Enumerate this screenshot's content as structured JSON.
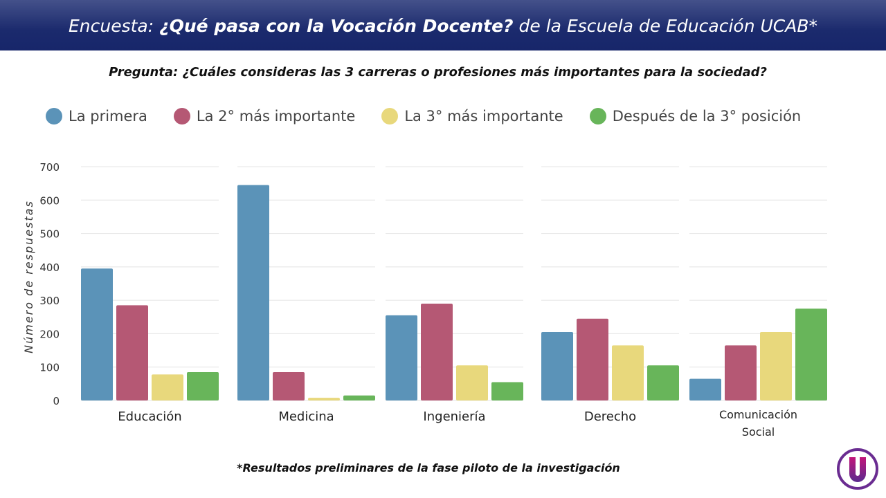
{
  "header": {
    "prefix": "Encuesta:",
    "emphasis": "¿Qué pasa con la Vocación Docente?",
    "suffix": "de la Escuela de Educación UCAB*"
  },
  "question": "Pregunta: ¿Cuáles consideras las 3 carreras o profesiones más importantes para la sociedad?",
  "footnote": "*Resultados preliminares de la fase piloto de la investigación",
  "logo": {
    "icon": "ucab-u-logo",
    "colors": [
      "#6a2c91",
      "#c2157a"
    ]
  },
  "chart_data": {
    "type": "bar",
    "title": "",
    "xlabel": "",
    "ylabel": "Número de respuestas",
    "ylim": [
      0,
      700
    ],
    "yticks": [
      0,
      100,
      200,
      300,
      400,
      500,
      600,
      700
    ],
    "grid": true,
    "legend_position": "top",
    "categories": [
      "Educación",
      "Medicina",
      "Ingeniería",
      "Derecho",
      "Comunicación Social"
    ],
    "series": [
      {
        "name": "La primera",
        "color": "#5b93b8",
        "values": [
          395,
          645,
          255,
          205,
          65
        ]
      },
      {
        "name": "La 2° más importante",
        "color": "#b55874",
        "values": [
          285,
          85,
          290,
          245,
          165
        ]
      },
      {
        "name": "La 3° más importante",
        "color": "#e8d87c",
        "values": [
          78,
          8,
          105,
          165,
          205
        ]
      },
      {
        "name": "Después de la 3° posición",
        "color": "#68b55a",
        "values": [
          85,
          15,
          55,
          105,
          275
        ]
      }
    ]
  }
}
